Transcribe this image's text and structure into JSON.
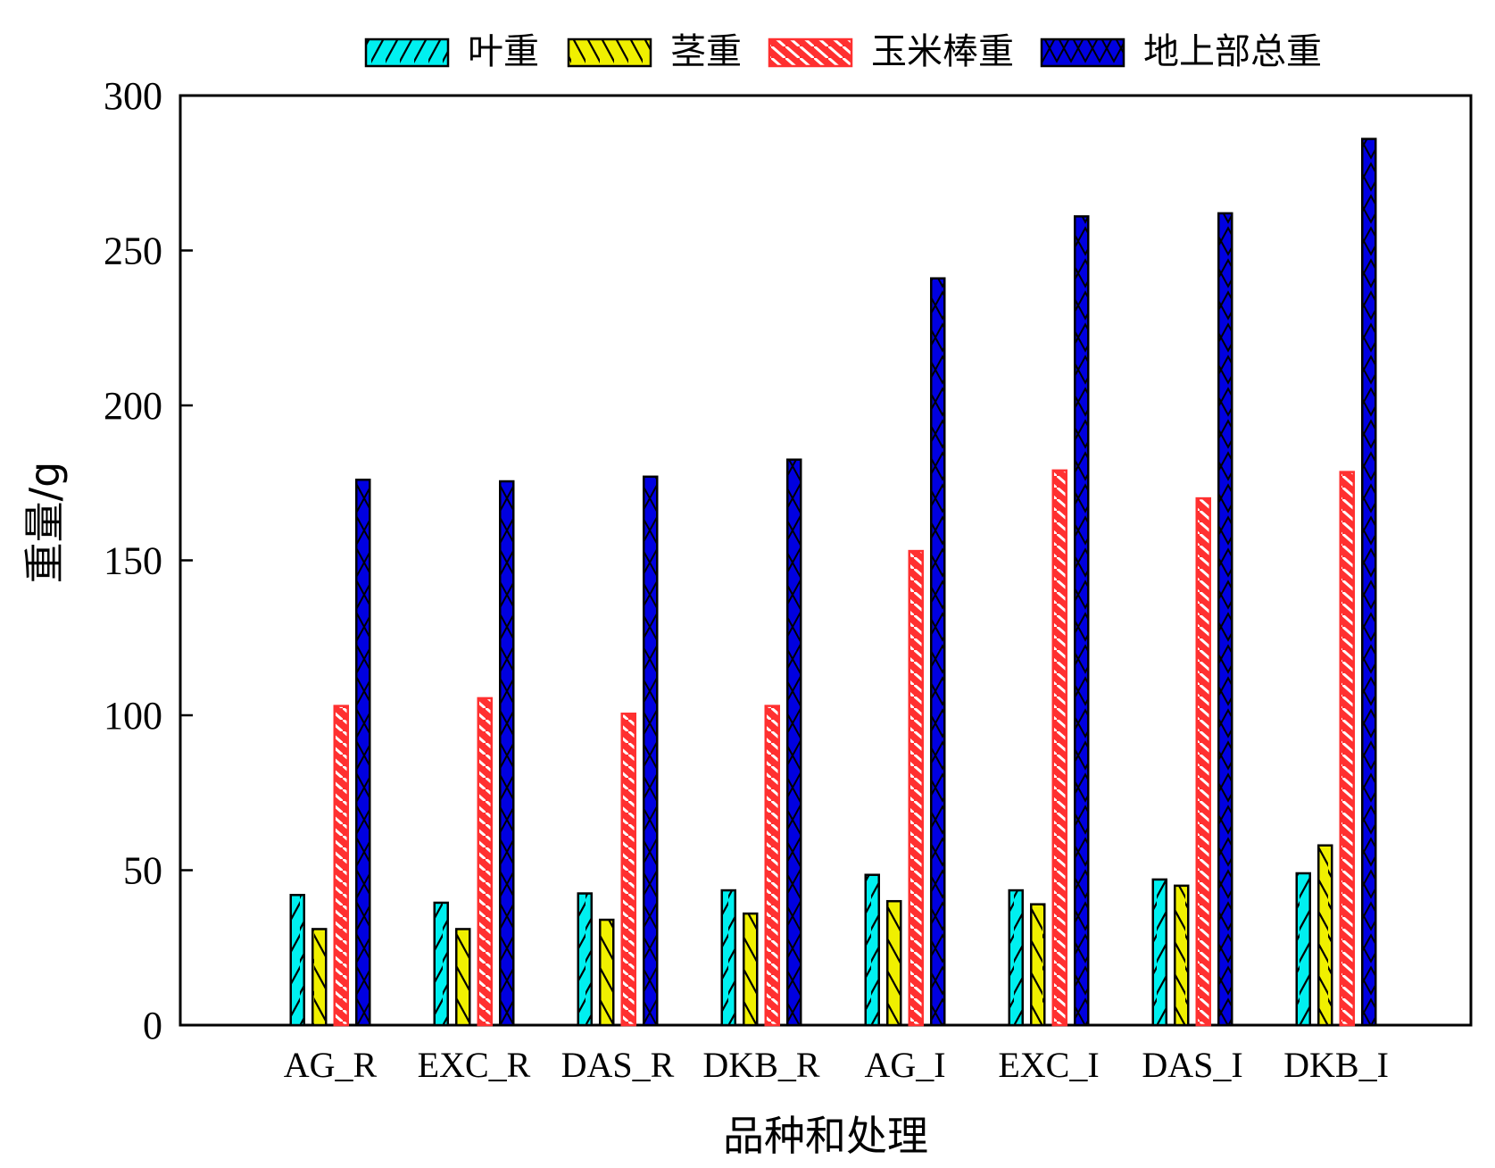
{
  "chart_data": {
    "type": "bar",
    "xlabel": "品种和处理",
    "ylabel": "重量/g",
    "ylim": [
      0,
      300
    ],
    "yticks": [
      0,
      50,
      100,
      150,
      200,
      250,
      300
    ],
    "grid": false,
    "legend_position": "top",
    "categories": [
      "AG_R",
      "EXC_R",
      "DAS_R",
      "DKB_R",
      "AG_I",
      "EXC_I",
      "DAS_I",
      "DKB_I"
    ],
    "series": [
      {
        "name": "叶重",
        "color": "#00f0f0",
        "pattern": "single-hatch",
        "values": [
          42,
          39.5,
          42.5,
          43.5,
          48.5,
          43.5,
          47,
          49
        ]
      },
      {
        "name": "茎重",
        "color": "#f0f000",
        "pattern": "back-hatch",
        "values": [
          31,
          31,
          34,
          36,
          40,
          39,
          45,
          58
        ]
      },
      {
        "name": "玉米棒重",
        "color": "#ff3030",
        "pattern": "dense-hatch",
        "values": [
          103,
          105.5,
          100.5,
          103,
          153,
          179,
          170,
          178.5
        ]
      },
      {
        "name": "地上部总重",
        "color": "#0000e0",
        "pattern": "cross-hatch",
        "values": [
          176,
          175.5,
          177,
          182.5,
          241,
          261,
          262,
          286
        ]
      }
    ]
  }
}
